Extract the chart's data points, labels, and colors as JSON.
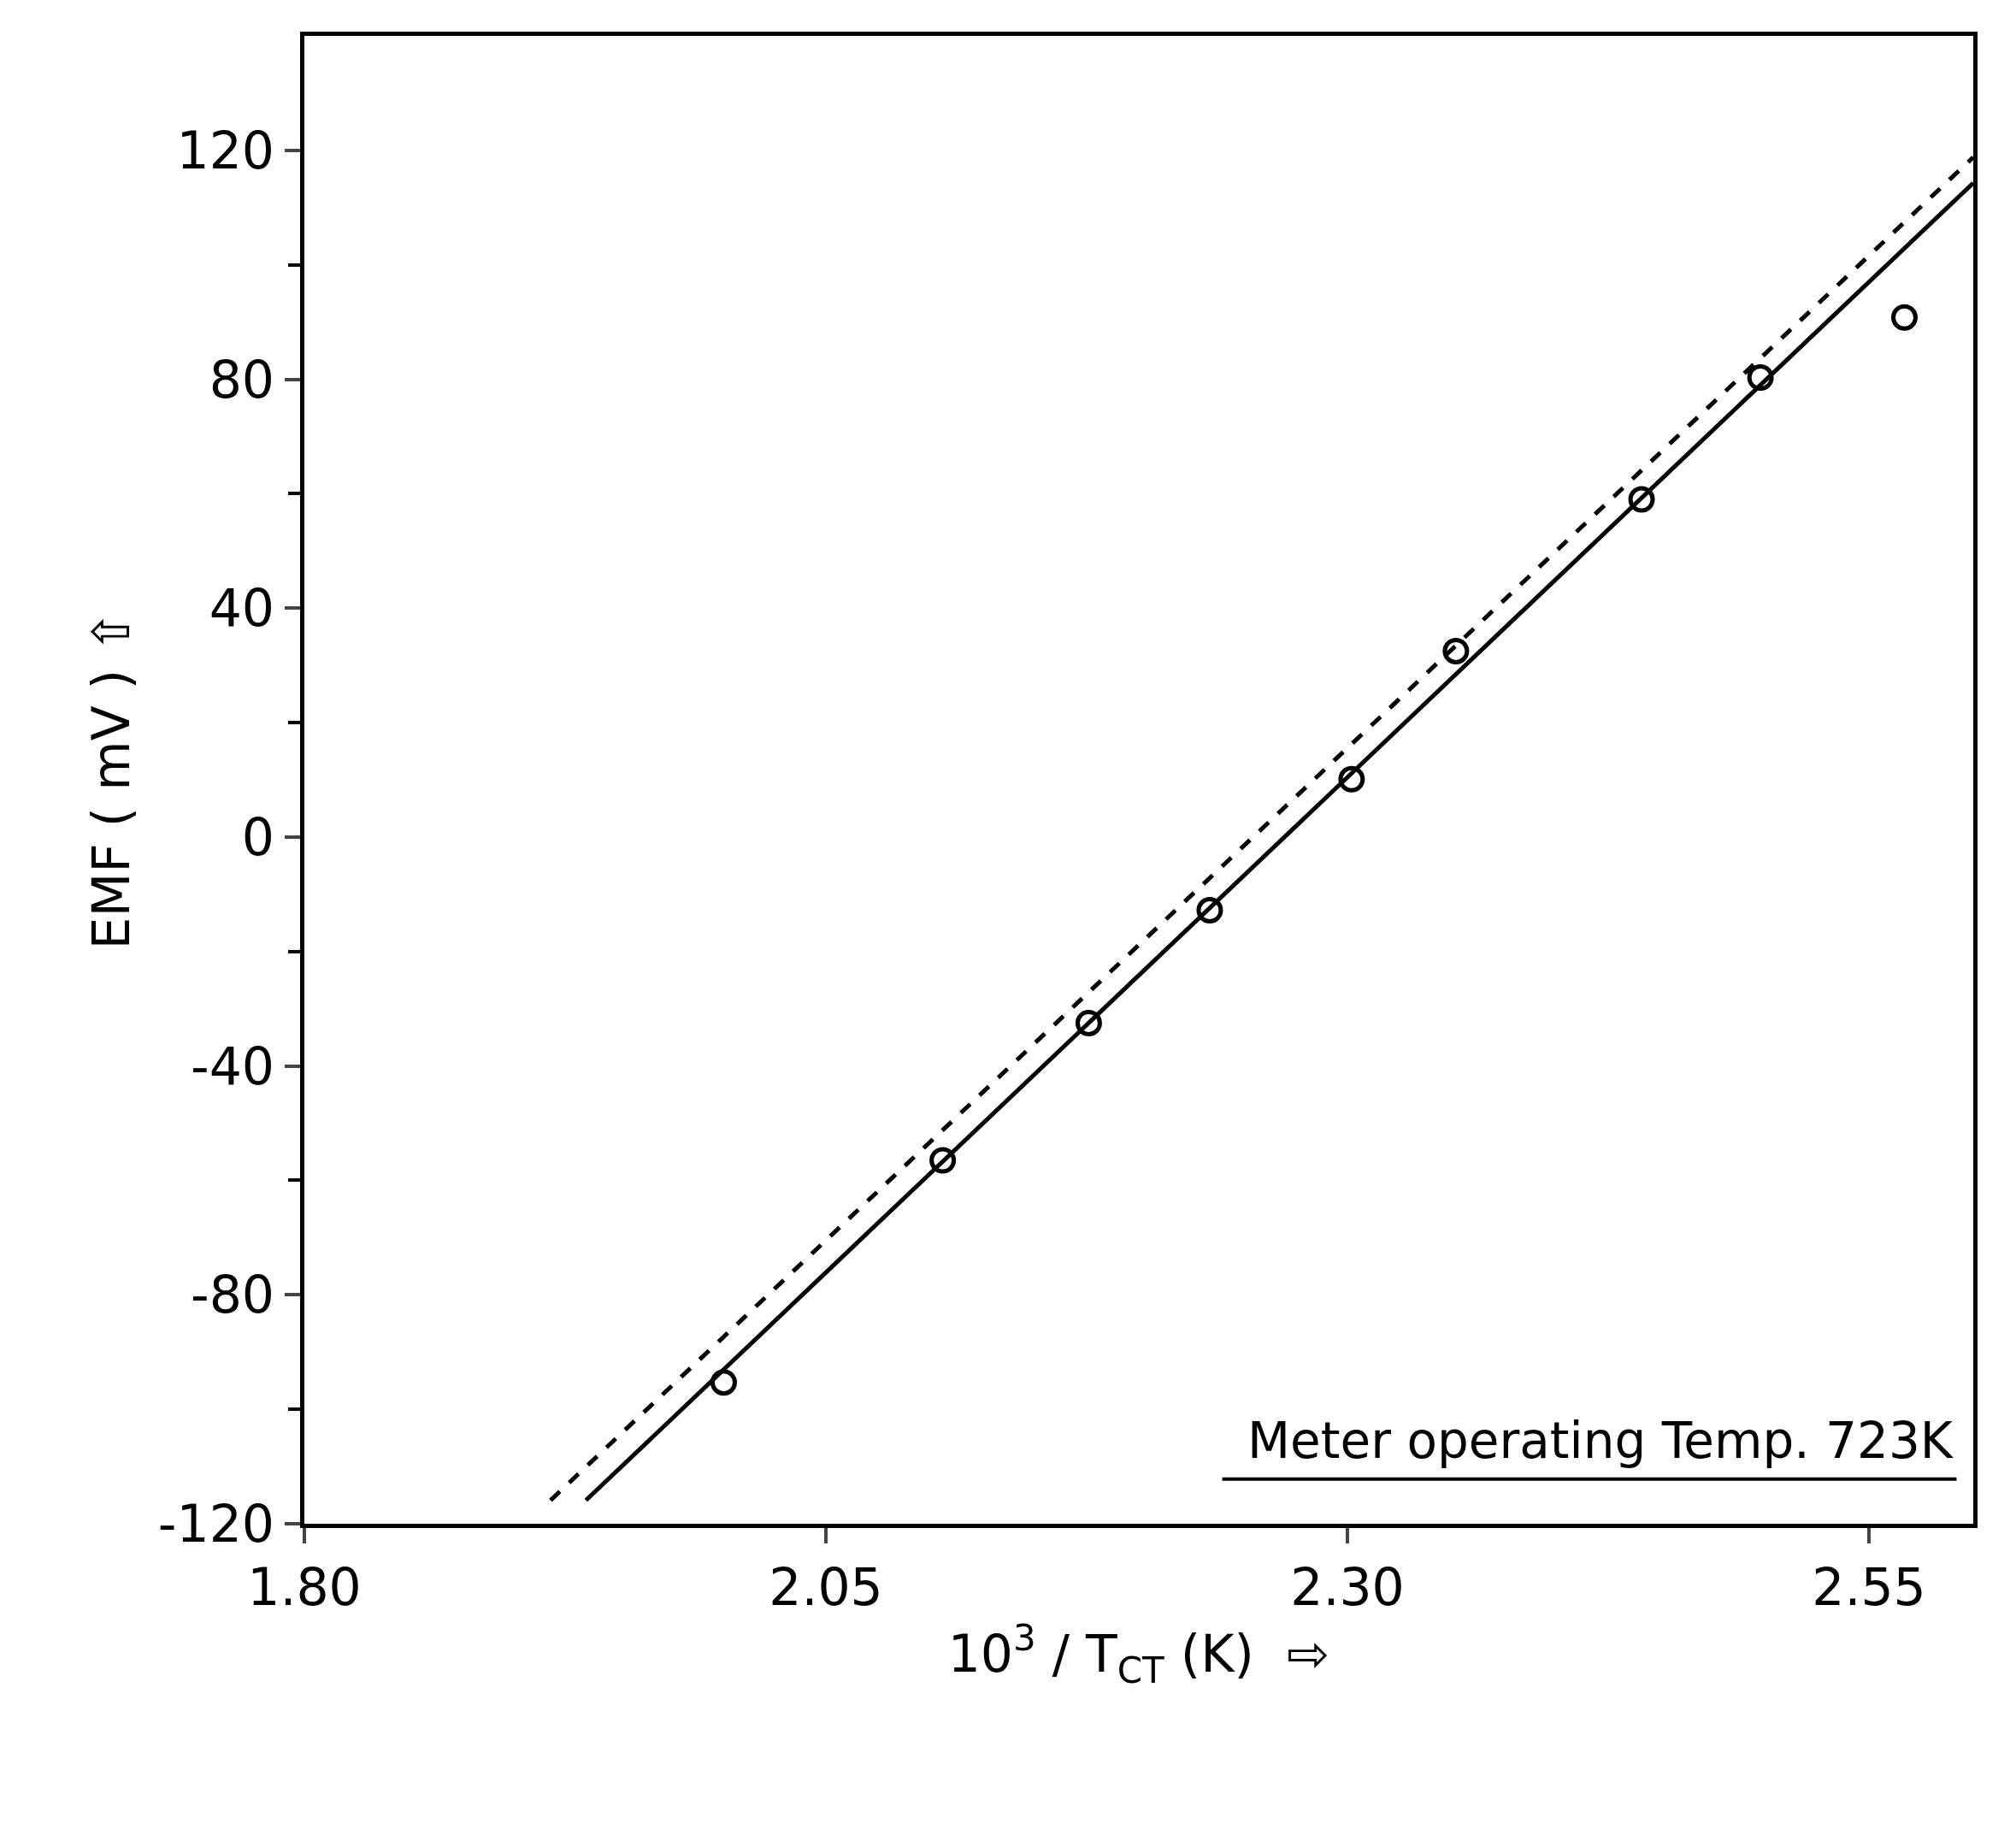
{
  "chart_data": {
    "type": "scatter",
    "xlabel": "10$^{3}$ / T$_{CT}$ (K)  ⇨",
    "ylabel": "EMF ( mV ) ⇧",
    "annotations": [
      "Meter operating Temp. 723K"
    ],
    "xlim": [
      1.8,
      2.6
    ],
    "xticks": [
      {
        "value": 1.8,
        "label": "1.80"
      },
      2.05,
      {
        "value": 2.3,
        "label": "2.30"
      },
      2.55
    ],
    "ylim": [
      -120,
      140
    ],
    "yticks": [
      -120,
      {
        "value": -100,
        "label": null
      },
      -80,
      {
        "value": -60,
        "label": null
      },
      -40,
      {
        "value": -20,
        "label": null
      },
      0,
      {
        "value": 20,
        "label": null
      },
      40,
      {
        "value": 60,
        "label": null
      },
      80,
      {
        "value": 100,
        "label": null
      },
      120
    ],
    "series": [
      {
        "marker": "circle",
        "color": "#000000",
        "x": [
          2.001,
          2.106,
          2.176,
          2.234,
          2.302,
          2.352,
          2.441,
          2.498,
          2.567
        ],
        "values": [
          -95.3,
          -56.5,
          -32.5,
          -12.8,
          10.1,
          32.5,
          59,
          80.3,
          90.8
        ]
      },
      {
        "type": "line",
        "line_style": "solid",
        "color": "#000000",
        "x": [
          1.935,
          2.6
        ],
        "values": [
          -115.9,
          114.3
        ]
      },
      {
        "type": "line",
        "line_style": "dashed",
        "color": "#000000",
        "x": [
          1.918,
          2.6
        ],
        "values": [
          -115.9,
          118.8
        ]
      }
    ]
  }
}
